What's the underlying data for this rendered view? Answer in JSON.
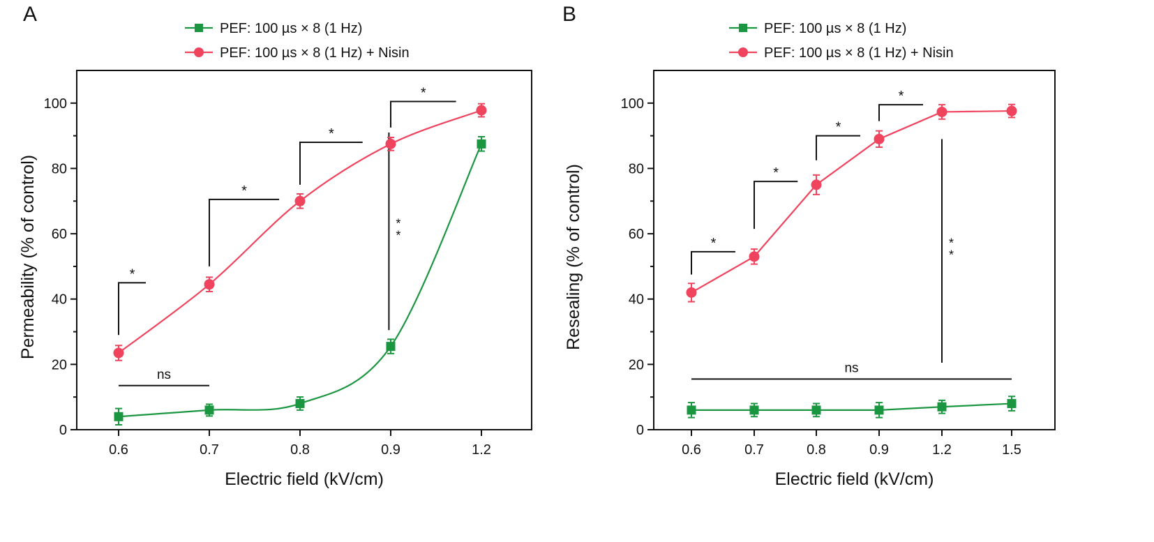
{
  "chart_data": [
    {
      "panel_label": "A",
      "type": "line",
      "xlabel": "Electric field (kV/cm)",
      "ylabel": "Permeability (% of control)",
      "categories": [
        "0.6",
        "0.7",
        "0.8",
        "0.9",
        "1.2"
      ],
      "ylim": [
        0,
        110
      ],
      "yticks": [
        "0",
        "20",
        "40",
        "60",
        "80",
        "100"
      ],
      "smooth": true,
      "series": [
        {
          "name": "PEF: 100 µs × 8 (1 Hz)",
          "marker": "square",
          "color": "#1a9641",
          "values": [
            4,
            6,
            8,
            25.5,
            87.5
          ],
          "errors": [
            2.5,
            1.8,
            2,
            2.2,
            2.2
          ]
        },
        {
          "name": "PEF: 100 µs × 8 (1 Hz) + Nisin",
          "marker": "circle",
          "color": "#f0435e",
          "values": [
            23.5,
            44.5,
            70,
            87.5,
            97.8
          ],
          "errors": [
            2.3,
            2.2,
            2.2,
            2,
            2
          ]
        }
      ],
      "annotations": [
        {
          "type": "bracket",
          "x": 0,
          "x2": 0.3,
          "y_from": 29,
          "y_top": 45,
          "label": "*"
        },
        {
          "type": "bracket",
          "x": 1,
          "x2": 1.77,
          "y_from": 50,
          "y_top": 70.5,
          "label": "*"
        },
        {
          "type": "bracket",
          "x": 2,
          "x2": 2.69,
          "y_from": 75,
          "y_top": 88,
          "label": "*"
        },
        {
          "type": "bracket",
          "x": 3,
          "x2": 3.72,
          "y_from": 92.5,
          "y_top": 100.5,
          "label": "*"
        },
        {
          "type": "hline",
          "x": 0,
          "x2": 1,
          "y": 13.5,
          "label": "ns"
        },
        {
          "type": "vline",
          "x": 2.98,
          "y_from": 30.5,
          "y_to": 91,
          "label": "**"
        }
      ]
    },
    {
      "panel_label": "B",
      "type": "line",
      "xlabel": "Electric field (kV/cm)",
      "ylabel": "Resealing (% of control)",
      "categories": [
        "0.6",
        "0.7",
        "0.8",
        "0.9",
        "1.2",
        "1.5"
      ],
      "ylim": [
        0,
        110
      ],
      "yticks": [
        "0",
        "20",
        "40",
        "60",
        "80",
        "100"
      ],
      "smooth": false,
      "series": [
        {
          "name": "PEF: 100 µs × 8 (1 Hz)",
          "marker": "square",
          "color": "#1a9641",
          "values": [
            6,
            6,
            6,
            6,
            7,
            8
          ],
          "errors": [
            2.3,
            2,
            2,
            2.3,
            2,
            2.2
          ]
        },
        {
          "name": "PEF: 100 µs × 8 (1 Hz) + Nisin",
          "marker": "circle",
          "color": "#f0435e",
          "values": [
            42,
            53,
            75,
            89,
            97.3,
            97.6
          ],
          "errors": [
            2.8,
            2.3,
            3,
            2.5,
            2.2,
            2
          ]
        }
      ],
      "annotations": [
        {
          "type": "bracket",
          "x": 0,
          "x2": 0.7,
          "y_from": 47.5,
          "y_top": 54.5,
          "label": "*"
        },
        {
          "type": "bracket",
          "x": 1,
          "x2": 1.7,
          "y_from": 61.5,
          "y_top": 76,
          "label": "*"
        },
        {
          "type": "bracket",
          "x": 2,
          "x2": 2.7,
          "y_from": 82.5,
          "y_top": 90,
          "label": "*"
        },
        {
          "type": "bracket",
          "x": 3,
          "x2": 3.7,
          "y_from": 94.5,
          "y_top": 99.5,
          "label": "*"
        },
        {
          "type": "hline",
          "x": 0,
          "x2": 5,
          "y": 15.5,
          "label": "ns"
        },
        {
          "type": "vline",
          "x": 4,
          "y_from": 20.5,
          "y_to": 89,
          "label": "**"
        }
      ]
    }
  ]
}
